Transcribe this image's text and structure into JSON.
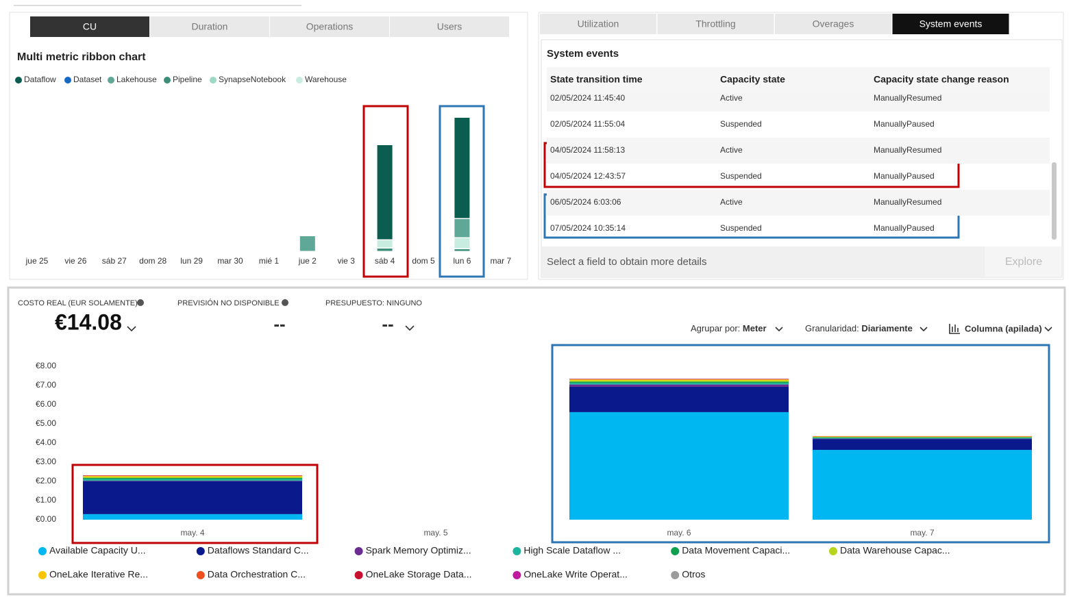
{
  "left_panel": {
    "tabs": [
      "CU",
      "Duration",
      "Operations",
      "Users"
    ]
  },
  "right_panel": {
    "tabs": [
      "Utilization",
      "Throttling",
      "Overages",
      "System events"
    ],
    "title": "System events",
    "table": {
      "columns": [
        "State transition time",
        "Capacity state",
        "Capacity state change reason"
      ],
      "rows": [
        [
          "02/05/2024 11:45:40",
          "Active",
          "ManuallyResumed"
        ],
        [
          "02/05/2024 11:55:04",
          "Suspended",
          "ManuallyPaused"
        ],
        [
          "04/05/2024 11:58:13",
          "Active",
          "ManuallyResumed"
        ],
        [
          "04/05/2024 12:43:57",
          "Suspended",
          "ManuallyPaused"
        ],
        [
          "06/05/2024 6:03:06",
          "Active",
          "ManuallyResumed"
        ],
        [
          "07/05/2024 10:35:14",
          "Suspended",
          "ManuallyPaused"
        ]
      ]
    },
    "footer": "Select a field to obtain more details",
    "button": "Explore"
  },
  "cost_panel": {
    "actual_label": "COSTO REAL (EUR SOLAMENTE)",
    "actual_value": "€14.08",
    "forecast_label": "PREVISIÓN NO DISPONIBLE",
    "forecast_value": "--",
    "budget_label": "PRESUPUESTO: NINGUNO",
    "budget_value": "--",
    "group_by_label": "Agrupar por:",
    "group_by_value": "Meter",
    "granularity_label": "Granularidad:",
    "granularity_value": "Diariamente",
    "chart_type": "Columna (apilada)"
  },
  "chart_data": [
    {
      "type": "bar",
      "stacked": true,
      "title": "Multi metric ribbon chart",
      "categories": [
        "jue 25",
        "vie 26",
        "sáb 27",
        "dom 28",
        "lun 29",
        "mar 30",
        "mié 1",
        "jue 2",
        "vie 3",
        "sáb 4",
        "dom 5",
        "lun 6",
        "mar 7"
      ],
      "ylim": [
        0,
        200
      ],
      "series": [
        {
          "name": "Dataflow",
          "color": "#0b5e4f",
          "values": [
            0,
            0,
            0,
            0,
            0,
            0,
            0,
            0,
            0,
            139,
            0,
            148,
            0
          ]
        },
        {
          "name": "Dataset",
          "color": "#1469c4",
          "values": [
            0,
            0,
            0,
            0,
            0,
            0,
            0,
            0,
            0,
            0,
            0,
            0,
            0
          ]
        },
        {
          "name": "Lakehouse",
          "color": "#5fa897",
          "values": [
            0,
            0,
            0,
            0,
            0,
            0,
            0,
            23,
            0,
            0,
            0,
            28,
            0
          ]
        },
        {
          "name": "Pipeline",
          "color": "#3b8f78",
          "values": [
            0,
            0,
            0,
            0,
            0,
            0,
            0,
            0,
            0,
            5,
            0,
            4,
            0
          ]
        },
        {
          "name": "SynapseNotebook",
          "color": "#9fd8c5",
          "values": [
            0,
            0,
            0,
            0,
            0,
            0,
            0,
            0,
            0,
            0,
            0,
            0,
            0
          ]
        },
        {
          "name": "Warehouse",
          "color": "#c9ece0",
          "values": [
            0,
            0,
            0,
            0,
            0,
            0,
            0,
            0,
            0,
            12,
            0,
            16,
            0
          ]
        }
      ]
    },
    {
      "type": "bar",
      "stacked": true,
      "categories": [
        "may. 4",
        "may. 5",
        "may. 6",
        "may. 7"
      ],
      "ylim": [
        0,
        8
      ],
      "yticks": [
        {
          "value": 0,
          "label": "€0.00"
        },
        {
          "value": 1,
          "label": "€1.00"
        },
        {
          "value": 2,
          "label": "€2.00"
        },
        {
          "value": 3,
          "label": "€3.00"
        },
        {
          "value": 4,
          "label": "€4.00"
        },
        {
          "value": 5,
          "label": "€5.00"
        },
        {
          "value": 6,
          "label": "€6.00"
        },
        {
          "value": 7,
          "label": "€7.00"
        },
        {
          "value": 8,
          "label": "€8.00"
        }
      ],
      "series": [
        {
          "name": "Available Capacity U...",
          "color": "#00b7f1",
          "values": [
            0.29,
            0,
            5.61,
            3.64
          ]
        },
        {
          "name": "Dataflows Standard C...",
          "color": "#0a1a8c",
          "values": [
            1.71,
            0,
            1.32,
            0.57
          ]
        },
        {
          "name": "Spark Memory Optimiz...",
          "color": "#6b2c91",
          "values": [
            0.03,
            0,
            0.12,
            0.02
          ]
        },
        {
          "name": "High Scale Dataflow ...",
          "color": "#1bb5a0",
          "values": [
            0.09,
            0,
            0.08,
            0.04
          ]
        },
        {
          "name": "Data Movement Capaci...",
          "color": "#0fa04f",
          "values": [
            0.06,
            0,
            0.07,
            0.03
          ]
        },
        {
          "name": "Data Warehouse Capac...",
          "color": "#b7d51c",
          "values": [
            0.05,
            0,
            0.06,
            0.02
          ]
        },
        {
          "name": "OneLake Iterative Re...",
          "color": "#f7c600",
          "values": [
            0.05,
            0,
            0.05,
            0.02
          ]
        },
        {
          "name": "Data Orchestration C...",
          "color": "#f0501e",
          "values": [
            0.02,
            0,
            0.02,
            0.01
          ]
        },
        {
          "name": "OneLake Storage Data...",
          "color": "#c8102e",
          "values": [
            0.01,
            0,
            0.01,
            0.01
          ]
        },
        {
          "name": "OneLake Write Operat...",
          "color": "#c0189e",
          "values": [
            0.01,
            0,
            0.01,
            0
          ]
        },
        {
          "name": "Otros",
          "color": "#9a9a9a",
          "values": [
            0,
            0,
            0.01,
            0
          ]
        }
      ]
    }
  ]
}
